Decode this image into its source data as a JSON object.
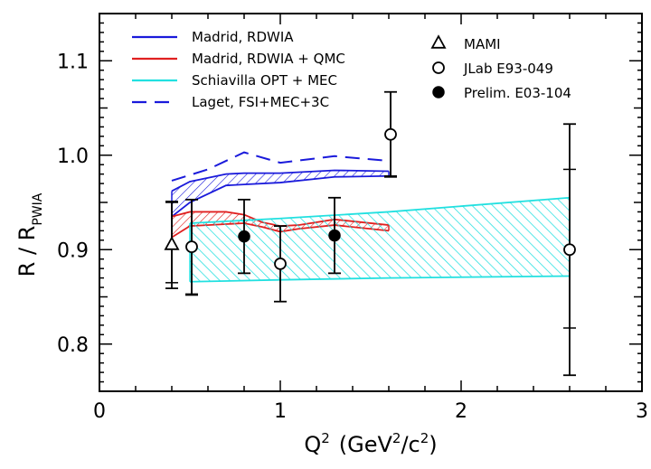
{
  "chart_data": {
    "type": "scatter",
    "xlabel": "Q",
    "xlabel_sup": "2",
    "xlabel_units_open": "(GeV",
    "xlabel_units_sup1": "2",
    "xlabel_units_mid": "/c",
    "xlabel_units_sup2": "2",
    "xlabel_units_close": ")",
    "ylabel_main": "R / R",
    "ylabel_sub": "PWIA",
    "xlim": [
      0,
      3
    ],
    "ylim": [
      0.75,
      1.15
    ],
    "x_ticks": [
      0,
      1,
      2,
      3
    ],
    "x_tick_labels": [
      "0",
      "1",
      "2",
      "3"
    ],
    "y_ticks": [
      0.8,
      0.9,
      1.0,
      1.1
    ],
    "y_tick_labels": [
      "0.8",
      "0.9",
      "1.0",
      "1.1"
    ],
    "grid": false,
    "legend_left": [
      {
        "name": "Madrid,  RDWIA",
        "color": "#1a1adb",
        "style": "solid"
      },
      {
        "name": "Madrid,  RDWIA + QMC",
        "color": "#e02020",
        "style": "solid"
      },
      {
        "name": "Schiavilla  OPT + MEC",
        "color": "#22e0e0",
        "style": "solid"
      },
      {
        "name": "Laget,  FSI+MEC+3C",
        "color": "#1a1adb",
        "style": "dashed"
      }
    ],
    "legend_right": [
      {
        "name": "MAMI",
        "marker": "triangle-open"
      },
      {
        "name": "JLab  E93-049",
        "marker": "circle-open"
      },
      {
        "name": "Prelim.  E03-104",
        "marker": "circle-filled"
      }
    ],
    "bands": [
      {
        "name": "Madrid,  RDWIA",
        "color": "#1a1adb",
        "x": [
          0.4,
          0.5,
          0.7,
          0.8,
          1.0,
          1.3,
          1.6
        ],
        "upper": [
          0.962,
          0.972,
          0.98,
          0.981,
          0.981,
          0.984,
          0.983
        ],
        "lower": [
          0.935,
          0.95,
          0.968,
          0.969,
          0.971,
          0.977,
          0.978
        ]
      },
      {
        "name": "Madrid,  RDWIA + QMC",
        "color": "#e02020",
        "x": [
          0.4,
          0.5,
          0.7,
          0.8,
          0.9,
          1.0,
          1.1,
          1.3,
          1.6
        ],
        "upper": [
          0.935,
          0.94,
          0.94,
          0.937,
          0.929,
          0.925,
          0.926,
          0.932,
          0.926
        ],
        "lower": [
          0.913,
          0.925,
          0.927,
          0.928,
          0.924,
          0.919,
          0.922,
          0.926,
          0.92
        ]
      },
      {
        "name": "Schiavilla  OPT + MEC",
        "color": "#22e0e0",
        "x": [
          0.5,
          1.0,
          1.6,
          2.6
        ],
        "upper": [
          0.928,
          0.933,
          0.94,
          0.955
        ],
        "lower": [
          0.866,
          0.868,
          0.87,
          0.872
        ]
      }
    ],
    "lines": [
      {
        "name": "Laget,  FSI+MEC+3C",
        "color": "#1a1adb",
        "style": "dashed",
        "x": [
          0.4,
          0.6,
          0.8,
          1.0,
          1.3,
          1.6
        ],
        "y": [
          0.973,
          0.985,
          1.003,
          0.992,
          0.999,
          0.994
        ]
      }
    ],
    "series": [
      {
        "name": "MAMI",
        "marker": "triangle-open",
        "points": [
          {
            "x": 0.4,
            "y": 0.905,
            "err_lo": 0.046,
            "err_hi": 0.046
          }
        ]
      },
      {
        "name": "JLab  E93-049",
        "marker": "circle-open",
        "points": [
          {
            "x": 0.51,
            "y": 0.903,
            "err_lo": 0.051,
            "err_hi": 0.05
          },
          {
            "x": 1.0,
            "y": 0.885,
            "err_lo": 0.04,
            "err_hi": 0.04
          },
          {
            "x": 1.61,
            "y": 1.022,
            "err_lo": 0.045,
            "err_hi": 0.045
          },
          {
            "x": 2.6,
            "y": 0.9,
            "err_lo": 0.133,
            "err_hi": 0.133
          }
        ]
      },
      {
        "name": "Prelim.  E03-104",
        "marker": "circle-filled",
        "points": [
          {
            "x": 0.8,
            "y": 0.914,
            "err_lo": 0.039,
            "err_hi": 0.039
          },
          {
            "x": 1.3,
            "y": 0.915,
            "err_lo": 0.04,
            "err_hi": 0.04
          }
        ]
      }
    ],
    "systematic_brackets": [
      {
        "x": 0.4,
        "lo": 0.865,
        "hi": 0.95
      },
      {
        "x": 0.51,
        "lo": 0.853,
        "hi": 0.953
      },
      {
        "x": 1.61,
        "lo": 0.978,
        "hi": 1.067
      },
      {
        "x": 2.6,
        "lo": 0.817,
        "hi": 0.985
      }
    ]
  }
}
